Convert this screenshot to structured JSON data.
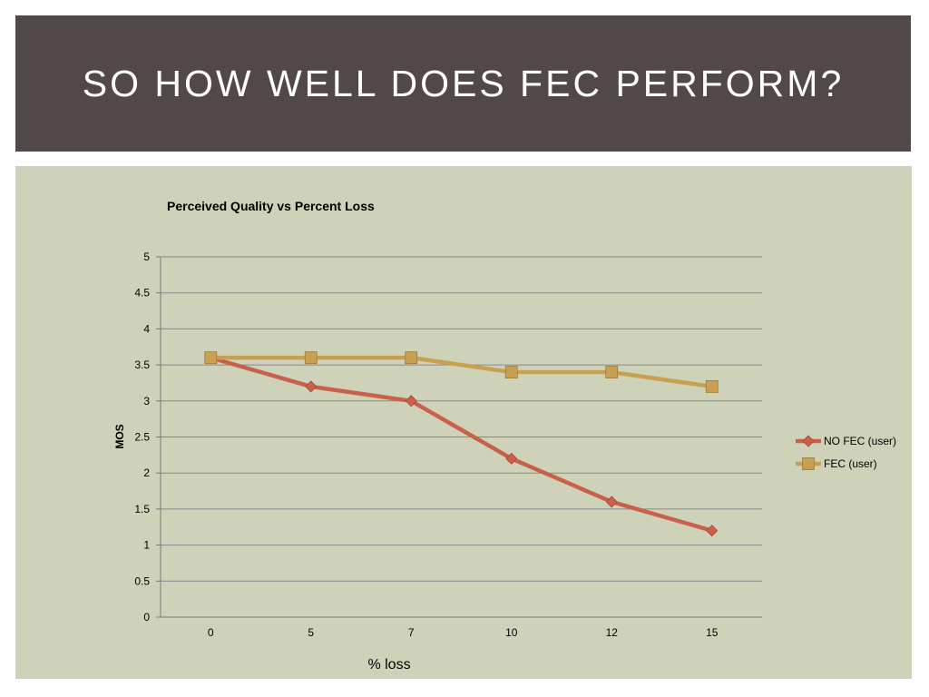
{
  "slide": {
    "title": "SO HOW WELL DOES FEC PERFORM?"
  },
  "colors": {
    "title_background": "#534848",
    "title_text": "#ffffff",
    "chart_background": "#ced2b8",
    "no_fec": "#c9614a",
    "fec": "#c9a052",
    "gridline": "#878787"
  },
  "chart_data": {
    "type": "line",
    "title": "Perceived Quality vs Percent Loss",
    "xlabel": "% loss",
    "ylabel": "MOS",
    "categories": [
      "0",
      "5",
      "7",
      "10",
      "12",
      "15"
    ],
    "ylim": [
      0,
      5
    ],
    "ytick_step": 0.5,
    "yticks": [
      "0",
      "0.5",
      "1",
      "1.5",
      "2",
      "2.5",
      "3",
      "3.5",
      "4",
      "4.5",
      "5"
    ],
    "grid": true,
    "legend_position": "right",
    "series": [
      {
        "name": "NO FEC (user)",
        "values": [
          3.6,
          3.2,
          3.0,
          2.2,
          1.6,
          1.2
        ],
        "color": "#c9614a",
        "marker": "diamond"
      },
      {
        "name": "FEC (user)",
        "values": [
          3.6,
          3.6,
          3.6,
          3.4,
          3.4,
          3.2
        ],
        "color": "#c9a052",
        "marker": "square"
      }
    ]
  }
}
